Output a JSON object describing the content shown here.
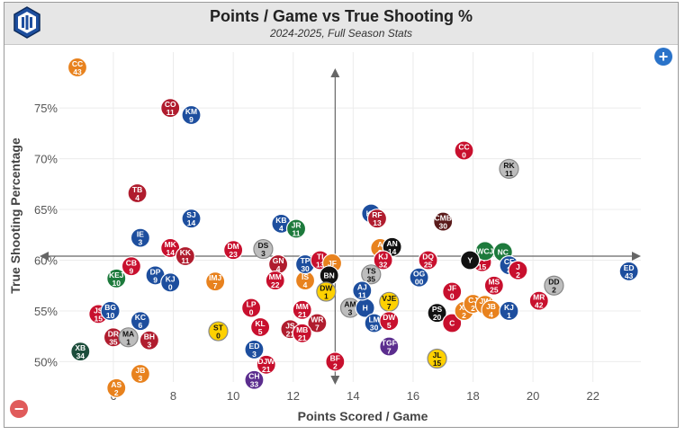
{
  "header": {
    "title": "Points / Game vs True Shooting %",
    "subtitle": "2024-2025, Full Season Stats"
  },
  "controls": {
    "zoom_in_symbol": "+",
    "zoom_out_symbol": "−"
  },
  "chart_data": {
    "type": "scatter",
    "title": "Points / Game vs True Shooting %",
    "subtitle": "2024-2025, Full Season Stats",
    "xlabel": "Points Scored / Game",
    "ylabel": "True Shooting Percentage",
    "xlim": [
      4.2,
      23.6
    ],
    "ylim": [
      48.0,
      80.5
    ],
    "x_ticks": [
      6,
      8,
      10,
      12,
      14,
      16,
      18,
      20,
      22
    ],
    "y_ticks": [
      50,
      55,
      60,
      65,
      70,
      75
    ],
    "y_tick_format": "percent",
    "grid": true,
    "reference_lines": {
      "x": 13.4,
      "y": 60.4
    },
    "points": [
      {
        "label": "CC",
        "number": "43",
        "x": 4.8,
        "y": 79.0,
        "color": "#e8821e"
      },
      {
        "label": "CO",
        "number": "11",
        "x": 7.9,
        "y": 75.0,
        "color": "#b01c2e"
      },
      {
        "label": "KM",
        "number": "9",
        "x": 8.6,
        "y": 74.3,
        "color": "#1d4e9e"
      },
      {
        "label": "TB",
        "number": "4",
        "x": 6.8,
        "y": 66.6,
        "color": "#b01c2e"
      },
      {
        "label": "SJ",
        "number": "14",
        "x": 8.6,
        "y": 64.1,
        "color": "#1d4e9e"
      },
      {
        "label": "IE",
        "number": "3",
        "x": 6.9,
        "y": 62.2,
        "color": "#1d4e9e"
      },
      {
        "label": "MK",
        "number": "14",
        "x": 7.9,
        "y": 61.2,
        "color": "#c8102e"
      },
      {
        "label": "KK",
        "number": "11",
        "x": 8.4,
        "y": 60.4,
        "color": "#b01c2e"
      },
      {
        "label": "CB",
        "number": "9",
        "x": 6.6,
        "y": 59.4,
        "color": "#c8102e"
      },
      {
        "label": "DP",
        "number": "9",
        "x": 7.4,
        "y": 58.5,
        "color": "#1d4e9e"
      },
      {
        "label": "KJ",
        "number": "0",
        "x": 7.9,
        "y": 57.8,
        "color": "#1d4e9e"
      },
      {
        "label": "KEJ",
        "number": "10",
        "x": 6.1,
        "y": 58.2,
        "color": "#1d7a3c"
      },
      {
        "label": "IMJ",
        "number": "7",
        "x": 9.4,
        "y": 57.9,
        "color": "#e8821e"
      },
      {
        "label": "DM",
        "number": "23",
        "x": 10.0,
        "y": 61.0,
        "color": "#c8102e"
      },
      {
        "label": "DS",
        "number": "3",
        "x": 11.0,
        "y": 61.1,
        "color": "#bdbdbd"
      },
      {
        "label": "KB",
        "number": "4",
        "x": 11.6,
        "y": 63.6,
        "color": "#1d4e9e"
      },
      {
        "label": "JR",
        "number": "11",
        "x": 12.1,
        "y": 63.1,
        "color": "#1d7a3c"
      },
      {
        "label": "GN",
        "number": "4",
        "x": 11.5,
        "y": 59.6,
        "color": "#b01c2e"
      },
      {
        "label": "MM",
        "number": "22",
        "x": 11.4,
        "y": 58.0,
        "color": "#c8102e"
      },
      {
        "label": "IS",
        "number": "4",
        "x": 12.4,
        "y": 58.0,
        "color": "#e8821e"
      },
      {
        "label": "TP",
        "number": "30",
        "x": 12.4,
        "y": 59.6,
        "color": "#1d4e9e"
      },
      {
        "label": "TI",
        "number": "13",
        "x": 12.9,
        "y": 60.0,
        "color": "#c8102e"
      },
      {
        "label": "JF",
        "number": "",
        "x": 13.3,
        "y": 59.7,
        "color": "#e8821e"
      },
      {
        "label": "BN",
        "number": "",
        "x": 13.2,
        "y": 58.5,
        "color": "#111111"
      },
      {
        "label": "DW",
        "number": "1",
        "x": 13.1,
        "y": 56.9,
        "color": "#ffd100"
      },
      {
        "label": "AM",
        "number": "3",
        "x": 13.9,
        "y": 55.3,
        "color": "#bdbdbd"
      },
      {
        "label": "H",
        "number": "",
        "x": 14.4,
        "y": 55.3,
        "color": "#1d4e9e"
      },
      {
        "label": "MM",
        "number": "21",
        "x": 12.3,
        "y": 55.1,
        "color": "#c8102e"
      },
      {
        "label": "WR",
        "number": "7",
        "x": 12.8,
        "y": 53.8,
        "color": "#b01c2e"
      },
      {
        "label": "JS",
        "number": "21",
        "x": 11.9,
        "y": 53.2,
        "color": "#b01c2e"
      },
      {
        "label": "MB",
        "number": "21",
        "x": 12.3,
        "y": 52.8,
        "color": "#c8102e"
      },
      {
        "label": "BF",
        "number": "2",
        "x": 13.4,
        "y": 50.0,
        "color": "#c8102e"
      },
      {
        "label": "LP",
        "number": "0",
        "x": 10.6,
        "y": 55.3,
        "color": "#c8102e"
      },
      {
        "label": "KL",
        "number": "5",
        "x": 10.9,
        "y": 53.4,
        "color": "#c8102e"
      },
      {
        "label": "ST",
        "number": "0",
        "x": 9.5,
        "y": 53.0,
        "color": "#ffd100"
      },
      {
        "label": "ED",
        "number": "3",
        "x": 10.7,
        "y": 51.2,
        "color": "#1d4e9e"
      },
      {
        "label": "DJW",
        "number": "21",
        "x": 11.1,
        "y": 49.7,
        "color": "#c8102e"
      },
      {
        "label": "CH",
        "number": "33",
        "x": 10.7,
        "y": 48.2,
        "color": "#5b2d8e"
      },
      {
        "label": "JS",
        "number": "15",
        "x": 5.5,
        "y": 54.7,
        "color": "#c8102e"
      },
      {
        "label": "BG",
        "number": "10",
        "x": 5.9,
        "y": 55.0,
        "color": "#1d4e9e"
      },
      {
        "label": "KC",
        "number": "6",
        "x": 6.9,
        "y": 54.0,
        "color": "#1d4e9e"
      },
      {
        "label": "DR",
        "number": "35",
        "x": 6.0,
        "y": 52.4,
        "color": "#b01c2e"
      },
      {
        "label": "MA",
        "number": "1",
        "x": 6.5,
        "y": 52.4,
        "color": "#bdbdbd"
      },
      {
        "label": "BH",
        "number": "3",
        "x": 7.2,
        "y": 52.1,
        "color": "#b01c2e"
      },
      {
        "label": "XB",
        "number": "34",
        "x": 4.9,
        "y": 51.0,
        "color": "#1d4e3c"
      },
      {
        "label": "JB",
        "number": "3",
        "x": 6.9,
        "y": 48.8,
        "color": "#e8821e"
      },
      {
        "label": "AS",
        "number": "2",
        "x": 6.1,
        "y": 47.4,
        "color": "#e8821e"
      },
      {
        "label": "KL",
        "number": "",
        "x": 14.6,
        "y": 64.6,
        "color": "#1d4e9e"
      },
      {
        "label": "RF",
        "number": "13",
        "x": 14.8,
        "y": 64.1,
        "color": "#b01c2e"
      },
      {
        "label": "A",
        "number": "3",
        "x": 14.9,
        "y": 61.2,
        "color": "#e8821e"
      },
      {
        "label": "AN",
        "number": "14",
        "x": 15.3,
        "y": 61.3,
        "color": "#111111"
      },
      {
        "label": "KJ",
        "number": "32",
        "x": 15.0,
        "y": 60.0,
        "color": "#c8102e"
      },
      {
        "label": "TS",
        "number": "35",
        "x": 14.6,
        "y": 58.6,
        "color": "#bdbdbd"
      },
      {
        "label": "AJ",
        "number": "11",
        "x": 14.3,
        "y": 57.0,
        "color": "#1d4e9e"
      },
      {
        "label": "VJE",
        "number": "7",
        "x": 15.2,
        "y": 55.9,
        "color": "#ffd100"
      },
      {
        "label": "LM",
        "number": "30",
        "x": 14.7,
        "y": 53.8,
        "color": "#1d4e9e"
      },
      {
        "label": "DW",
        "number": "5",
        "x": 15.2,
        "y": 54.0,
        "color": "#c8102e"
      },
      {
        "label": "TGF",
        "number": "7",
        "x": 15.2,
        "y": 51.5,
        "color": "#5b2d8e"
      },
      {
        "label": "DQ",
        "number": "25",
        "x": 16.5,
        "y": 60.0,
        "color": "#c8102e"
      },
      {
        "label": "OG",
        "number": "00",
        "x": 16.2,
        "y": 58.3,
        "color": "#1d4e9e"
      },
      {
        "label": "CMB",
        "number": "30",
        "x": 17.0,
        "y": 63.8,
        "color": "#5a1a1a"
      },
      {
        "label": "CC",
        "number": "0",
        "x": 17.7,
        "y": 70.8,
        "color": "#c8102e"
      },
      {
        "label": "RK",
        "number": "11",
        "x": 19.2,
        "y": 69.0,
        "color": "#bdbdbd"
      },
      {
        "label": "JF",
        "number": "0",
        "x": 17.3,
        "y": 56.9,
        "color": "#c8102e"
      },
      {
        "label": "PS",
        "number": "20",
        "x": 16.8,
        "y": 54.8,
        "color": "#111111"
      },
      {
        "label": "C",
        "number": "",
        "x": 17.3,
        "y": 53.8,
        "color": "#c8102e"
      },
      {
        "label": "XL",
        "number": "2",
        "x": 17.7,
        "y": 55.0,
        "color": "#e8821e"
      },
      {
        "label": "CJ",
        "number": "2",
        "x": 18.0,
        "y": 55.7,
        "color": "#e8821e"
      },
      {
        "label": "JW",
        "number": "2",
        "x": 18.4,
        "y": 55.6,
        "color": "#e8821e"
      },
      {
        "label": "JB",
        "number": "4",
        "x": 18.6,
        "y": 55.1,
        "color": "#e8821e"
      },
      {
        "label": "MS",
        "number": "25",
        "x": 18.7,
        "y": 57.5,
        "color": "#c8102e"
      },
      {
        "label": "JT",
        "number": "15",
        "x": 18.3,
        "y": 59.8,
        "color": "#c8102e"
      },
      {
        "label": "WCJ",
        "number": "",
        "x": 18.4,
        "y": 60.9,
        "color": "#1d7a3c"
      },
      {
        "label": "NC",
        "number": "",
        "x": 19.0,
        "y": 60.8,
        "color": "#1d7a3c"
      },
      {
        "label": "Y",
        "number": "",
        "x": 17.9,
        "y": 60.0,
        "color": "#111111"
      },
      {
        "label": "CF",
        "number": "2",
        "x": 19.2,
        "y": 59.5,
        "color": "#1d4e9e"
      },
      {
        "label": "J",
        "number": "2",
        "x": 19.5,
        "y": 59.0,
        "color": "#c8102e"
      },
      {
        "label": "KJ",
        "number": "1",
        "x": 19.2,
        "y": 55.0,
        "color": "#1d4e9e"
      },
      {
        "label": "MR",
        "number": "42",
        "x": 20.2,
        "y": 56.0,
        "color": "#c8102e"
      },
      {
        "label": "DD",
        "number": "2",
        "x": 20.7,
        "y": 57.5,
        "color": "#bdbdbd"
      },
      {
        "label": "JL",
        "number": "15",
        "x": 16.8,
        "y": 50.3,
        "color": "#ffd100"
      },
      {
        "label": "ED",
        "number": "43",
        "x": 23.2,
        "y": 58.9,
        "color": "#1d4e9e"
      }
    ]
  }
}
